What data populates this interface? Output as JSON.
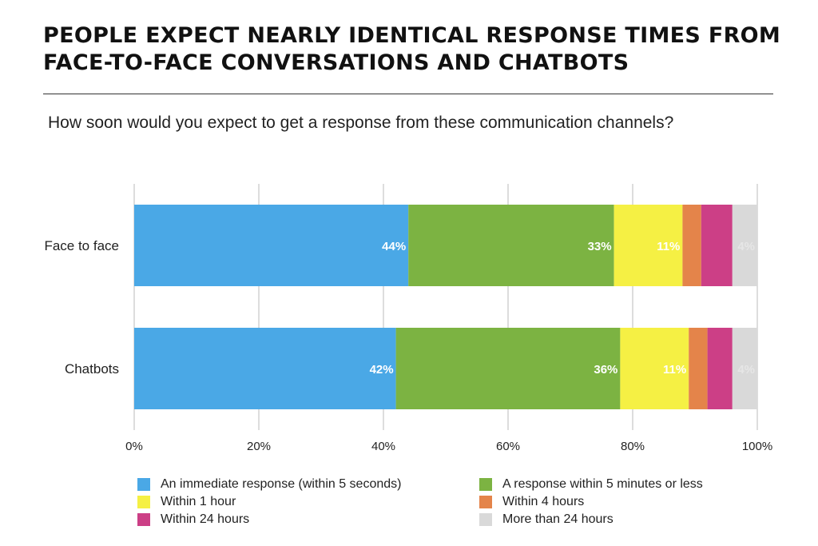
{
  "chart_data": {
    "type": "bar",
    "orientation": "horizontal",
    "stacked": true,
    "title": "PEOPLE EXPECT NEARLY IDENTICAL RESPONSE TIMES FROM FACE-TO-FACE CONVERSATIONS AND CHATBOTS",
    "subtitle": "How soon would you expect to get a response from these communication channels?",
    "categories": [
      "Face to face",
      "Chatbots"
    ],
    "xlim": [
      0,
      100
    ],
    "xticks": [
      "0%",
      "20%",
      "40%",
      "60%",
      "80%",
      "100%"
    ],
    "grid": true,
    "legend_position": "bottom",
    "series": [
      {
        "name": "An immediate response (within 5 seconds)",
        "color": "#4aa8e6",
        "values": [
          44,
          42
        ],
        "labels": [
          "44%",
          "42%"
        ]
      },
      {
        "name": "A response within 5 minutes or less",
        "color": "#7cb342",
        "values": [
          33,
          36
        ],
        "labels": [
          "33%",
          "36%"
        ]
      },
      {
        "name": "Within 1 hour",
        "color": "#f5f044",
        "values": [
          11,
          11
        ],
        "labels": [
          "11%",
          "11%"
        ]
      },
      {
        "name": "Within 4 hours",
        "color": "#e4844a",
        "values": [
          3,
          3
        ],
        "labels": [
          "",
          ""
        ]
      },
      {
        "name": "Within 24 hours",
        "color": "#cc3f86",
        "values": [
          5,
          4
        ],
        "labels": [
          "",
          ""
        ]
      },
      {
        "name": "More than 24 hours",
        "color": "#d9d9d9",
        "values": [
          4,
          4
        ],
        "labels": [
          "4%",
          "4%"
        ]
      }
    ]
  }
}
